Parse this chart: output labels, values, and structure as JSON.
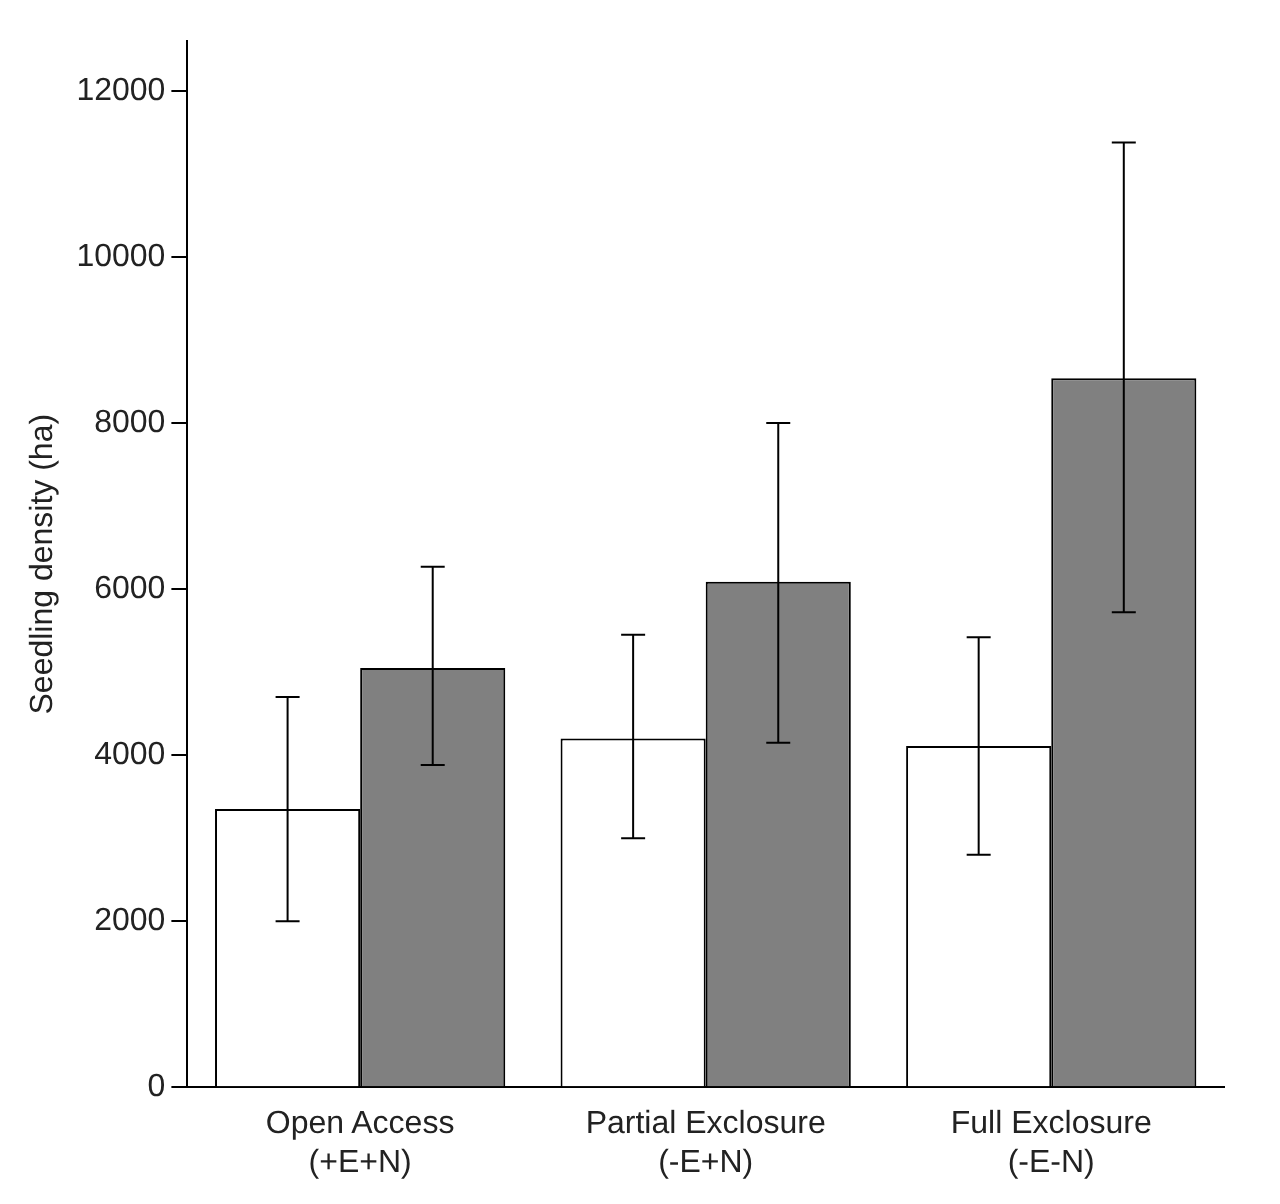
{
  "chart_data": {
    "type": "bar",
    "ylabel": "Seedling density (ha)",
    "categories": [
      "Open Access\n(+E+N)",
      "Partial Exclosure\n(-E+N)",
      "Full Exclosure\n(-E-N)"
    ],
    "series": [
      {
        "color": "#ffffff",
        "values": [
          3350,
          4200,
          4110
        ],
        "errors": [
          [
            2000,
            4700
          ],
          [
            3000,
            5450
          ],
          [
            2800,
            5420
          ]
        ]
      },
      {
        "color": "#808080",
        "values": [
          5050,
          6090,
          8540
        ],
        "errors": [
          [
            3880,
            6270
          ],
          [
            4150,
            8000
          ],
          [
            5720,
            11380
          ]
        ]
      }
    ],
    "ylim": [
      0,
      12600
    ],
    "yticks": [
      0,
      2000,
      4000,
      6000,
      8000,
      10000,
      12000
    ],
    "grid": false,
    "legend": false
  }
}
